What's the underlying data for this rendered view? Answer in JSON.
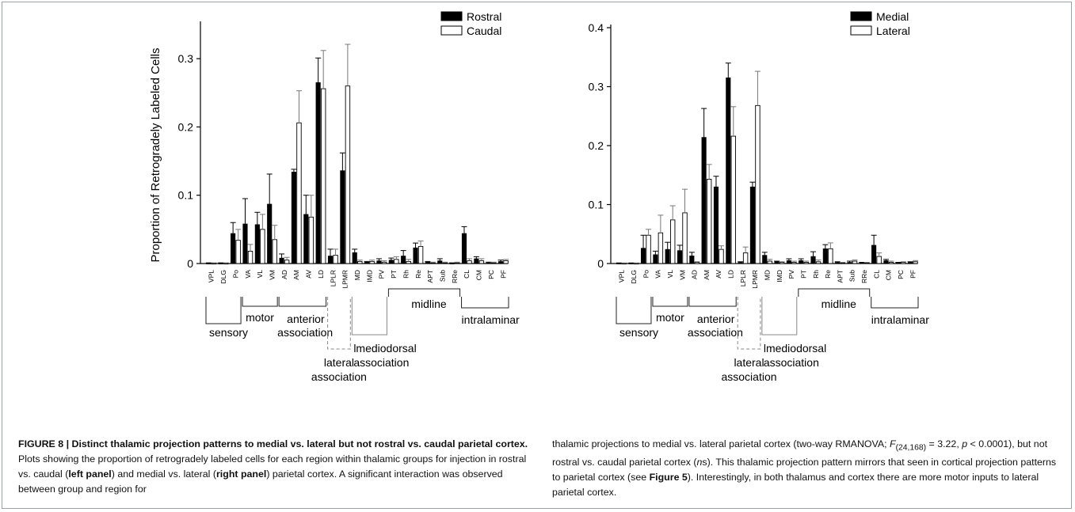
{
  "figure": {
    "caption": {
      "label": "FIGURE 8 | Distinct thalamic projection patterns to medial vs. lateral but not rostral vs. caudal parietal cortex.",
      "text_a": " Plots showing the proportion of retrogradely labeled cells for each region within thalamic groups for injection in rostral vs. caudal (",
      "left_panel": "left panel",
      "text_b": ") and medial vs. lateral (",
      "right_panel": "right panel",
      "text_c": ") parietal cortex. A significant interaction was observed between group and region for",
      "text_d": "thalamic projections to medial vs. lateral parietal cortex (two-way RMANOVA; ",
      "stat_f": "F",
      "stat_sub": "(24,168)",
      "stat_rest": " = 3.22, ",
      "stat_p": "p",
      "stat_p_rest": " < 0.0001), but not rostral vs. caudal parietal cortex (",
      "ns_n": "n",
      "ns_s": "s",
      "text_e": "). This thalamic projection pattern mirrors that seen in cortical projection patterns to parietal cortex (see ",
      "fig5": "Figure 5",
      "text_f": "). Interestingly, in both thalamus and cortex there are more motor inputs to lateral parietal cortex."
    }
  },
  "chart_data": [
    {
      "type": "bar",
      "panel": "left",
      "ylabel": "Proportion of Retrogradely Labeled Cells",
      "ylim": [
        0,
        0.35
      ],
      "yticks": [
        "0",
        "0.1",
        "0.2",
        "0.3"
      ],
      "legend_placement": "top-right",
      "categories": [
        "VPL",
        "DLG",
        "Po",
        "VA",
        "VL",
        "VM",
        "AD",
        "AM",
        "AV",
        "LD",
        "LPLR",
        "LPMR",
        "MD",
        "IMD",
        "PV",
        "PT",
        "Rh",
        "Re",
        "APT",
        "Sub",
        "RRe",
        "CL",
        "CM",
        "PC",
        "PF"
      ],
      "series": [
        {
          "name": "Rostral",
          "color": "#000000",
          "values": [
            0,
            0,
            0.044,
            0.058,
            0.057,
            0.087,
            0.008,
            0.134,
            0.072,
            0.265,
            0.011,
            0.136,
            0.016,
            0.002,
            0.004,
            0.005,
            0.011,
            0.023,
            0.002,
            0.004,
            0,
            0.044,
            0.007,
            0.001,
            0.003
          ],
          "errors": [
            0.001,
            0.001,
            0.016,
            0.037,
            0.018,
            0.044,
            0.006,
            0.004,
            0.028,
            0.036,
            0.01,
            0.026,
            0.005,
            0.001,
            0.003,
            0.003,
            0.008,
            0.007,
            0.001,
            0.003,
            0.001,
            0.01,
            0.003,
            0.001,
            0.002
          ]
        },
        {
          "name": "Caudal",
          "color": "#ffffff",
          "values": [
            0,
            0,
            0.034,
            0.018,
            0.05,
            0.035,
            0.005,
            0.206,
            0.068,
            0.256,
            0.012,
            0.26,
            0.003,
            0.003,
            0.002,
            0.006,
            0.003,
            0.025,
            0.001,
            0.001,
            0.001,
            0.004,
            0.004,
            0.001,
            0.004
          ],
          "errors": [
            0.001,
            0.001,
            0.016,
            0.01,
            0.022,
            0.021,
            0.004,
            0.047,
            0.032,
            0.056,
            0.009,
            0.061,
            0.002,
            0.002,
            0.002,
            0.004,
            0.003,
            0.008,
            0.001,
            0.001,
            0.001,
            0.003,
            0.003,
            0.001,
            0.002
          ]
        }
      ],
      "groups": [
        "sensory",
        "motor",
        "anterior",
        "association",
        "lateral",
        "association",
        "lmediodorsal",
        "association",
        "midline",
        "intralaminar"
      ]
    },
    {
      "type": "bar",
      "panel": "right",
      "ylabel": "",
      "ylim": [
        0,
        0.4
      ],
      "yticks": [
        "0",
        "0.1",
        "0.2",
        "0.3",
        "0.4"
      ],
      "legend_placement": "top-right",
      "categories": [
        "VPL",
        "DLG",
        "Po",
        "VA",
        "VL",
        "VM",
        "AD",
        "AM",
        "AV",
        "LD",
        "LPLR",
        "LPMR",
        "MD",
        "IMD",
        "PV",
        "PT",
        "Rh",
        "Re",
        "APT",
        "Sub",
        "RRe",
        "CL",
        "CM",
        "PC",
        "PF"
      ],
      "series": [
        {
          "name": "Medial",
          "color": "#000000",
          "values": [
            0,
            0,
            0.026,
            0.015,
            0.024,
            0.022,
            0.013,
            0.214,
            0.13,
            0.315,
            0.002,
            0.13,
            0.014,
            0.003,
            0.005,
            0.005,
            0.012,
            0.025,
            0.002,
            0.002,
            0.001,
            0.031,
            0.005,
            0.001,
            0.002
          ],
          "errors": [
            0.001,
            0.001,
            0.022,
            0.006,
            0.012,
            0.009,
            0.006,
            0.049,
            0.018,
            0.025,
            0.001,
            0.008,
            0.005,
            0.001,
            0.003,
            0.003,
            0.008,
            0.007,
            0.001,
            0.002,
            0.001,
            0.017,
            0.002,
            0.001,
            0.001
          ],
          "err_color": "#000000"
        },
        {
          "name": "Lateral",
          "color": "#ffffff",
          "values": [
            0,
            0,
            0.048,
            0.052,
            0.074,
            0.086,
            0.002,
            0.143,
            0.024,
            0.216,
            0.018,
            0.268,
            0.004,
            0.002,
            0.002,
            0.002,
            0.003,
            0.025,
            0.001,
            0.004,
            0.001,
            0.012,
            0.002,
            0.002,
            0.003
          ],
          "errors": [
            0.001,
            0.001,
            0.01,
            0.03,
            0.024,
            0.04,
            0.001,
            0.025,
            0.006,
            0.05,
            0.01,
            0.058,
            0.003,
            0.001,
            0.002,
            0.002,
            0.003,
            0.01,
            0.001,
            0.002,
            0.001,
            0.006,
            0.002,
            0.001,
            0.002
          ],
          "err_color": "#888888"
        }
      ],
      "groups": [
        "sensory",
        "motor",
        "anterior",
        "association",
        "lateral",
        "association",
        "lmediodorsal",
        "association",
        "midline",
        "intralaminar"
      ]
    }
  ]
}
